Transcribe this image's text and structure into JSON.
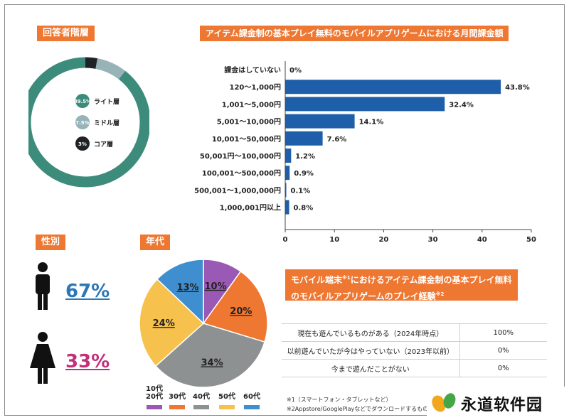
{
  "respondent": {
    "title": "回答者階層",
    "layers": [
      {
        "label": "ライト層",
        "badge": "89.5%",
        "value": 89.5,
        "color": "#3d8c7b"
      },
      {
        "label": "ミドル層",
        "badge": "7.5%",
        "value": 7.5,
        "color": "#97b3b7"
      },
      {
        "label": "コア層",
        "badge": "3%",
        "value": 3,
        "color": "#1f2326"
      }
    ]
  },
  "gender": {
    "title": "性別",
    "male_pct": "67%",
    "female_pct": "33%",
    "male_color": "#2c77b8",
    "female_color": "#c2307a"
  },
  "age": {
    "title": "年代",
    "slices": [
      {
        "label": "10%",
        "value": 10,
        "color": "#9a59b4"
      },
      {
        "label": "20%",
        "value": 20,
        "color": "#ee7732"
      },
      {
        "label": "34%",
        "value": 34,
        "color": "#8d9191"
      },
      {
        "label": "24%",
        "value": 24,
        "color": "#f6c24d"
      },
      {
        "label": "13%",
        "value": 13,
        "color": "#3f8fd0"
      }
    ],
    "legend": [
      {
        "line1": "10代",
        "line2": "20代",
        "color": "#9a59b4"
      },
      {
        "line1": "30代",
        "line2": "",
        "color": "#ee7732"
      },
      {
        "line1": "40代",
        "line2": "",
        "color": "#8d9191"
      },
      {
        "line1": "50代",
        "line2": "",
        "color": "#f6c24d"
      },
      {
        "line1": "60代",
        "line2": "",
        "color": "#3f8fd0"
      }
    ]
  },
  "chart_data": {
    "type": "bar",
    "orientation": "horizontal",
    "title": "アイテム課金制の基本プレイ無料のモバイルアプリゲームにおける月間課金額",
    "categories": [
      "課金はしていない",
      "120～1,000円",
      "1,001～5,000円",
      "5,001～10,000円",
      "10,001～50,000円",
      "50,001円～100,000円",
      "100,001～500,000円",
      "500,001～1,000,000円",
      "1,000,001円以上"
    ],
    "values": [
      0,
      43.8,
      32.4,
      14.1,
      7.6,
      1.2,
      0.9,
      0.1,
      0.8
    ],
    "value_labels": [
      "0%",
      "43.8%",
      "32.4%",
      "14.1%",
      "7.6%",
      "1.2%",
      "0.9%",
      "0.1%",
      "0.8%"
    ],
    "xlim": [
      0,
      50
    ],
    "xticks": [
      0,
      10,
      20,
      30,
      40,
      50
    ],
    "color": "#1f5ea8",
    "grid": false
  },
  "experience": {
    "title_line1_a": "モバイル端末",
    "title_line1_sup": "※1",
    "title_line1_b": "におけるアイテム課金制の基本プレイ無料",
    "title_line2_a": "のモバイルアプリゲームのプレイ経験",
    "title_line2_sup": "※2",
    "rows": [
      {
        "question": "現在も遊んでいるものがある（2024年時点）",
        "value": "100%"
      },
      {
        "question": "以前遊んでいたが今はやっていない（2023年以前）",
        "value": "0%"
      },
      {
        "question": "今まで遊んだことがない",
        "value": "0%"
      }
    ],
    "notes": [
      "※1（スマートフォン・タブレットなど）",
      "※2Appstore/GooglePlayなどでダウンロードするもの"
    ]
  },
  "watermark": "永道软件园"
}
